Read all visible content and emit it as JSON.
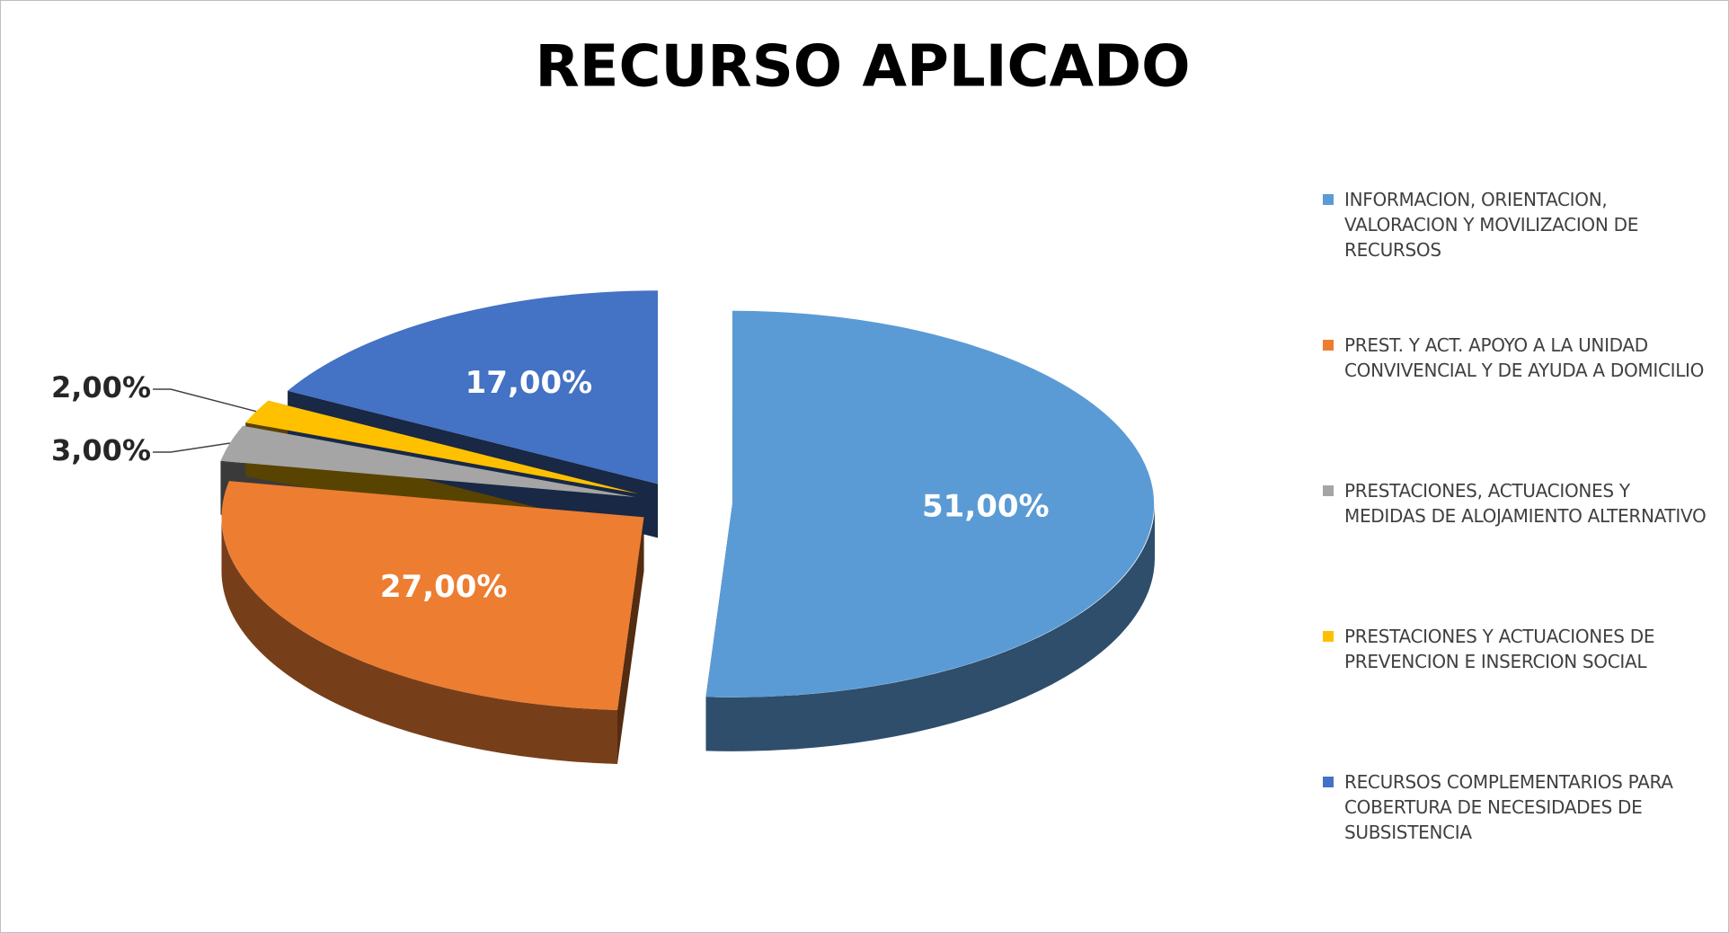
{
  "chart_data": {
    "type": "pie",
    "title": "RECURSO APLICADO",
    "categories": [
      "INFORMACION, ORIENTACION, VALORACION Y MOVILIZACION DE RECURSOS",
      "PREST. Y ACT. APOYO A LA UNIDAD CONVIVENCIAL Y DE AYUDA A DOMICILIO",
      "PRESTACIONES, ACTUACIONES Y MEDIDAS DE ALOJAMIENTO ALTERNATIVO",
      "PRESTACIONES Y ACTUACIONES DE PREVENCION E INSERCION SOCIAL",
      "RECURSOS COMPLEMENTARIOS PARA COBERTURA DE NECESIDADES DE SUBSISTENCIA"
    ],
    "values": [
      51,
      27,
      3,
      2,
      17
    ],
    "value_labels": [
      "51,00%",
      "27,00%",
      "3,00%",
      "2,00%",
      "17,00%"
    ],
    "colors": [
      "#5b9bd5",
      "#ed7d31",
      "#a5a5a5",
      "#ffc000",
      "#4472c4"
    ],
    "legend": "right"
  }
}
